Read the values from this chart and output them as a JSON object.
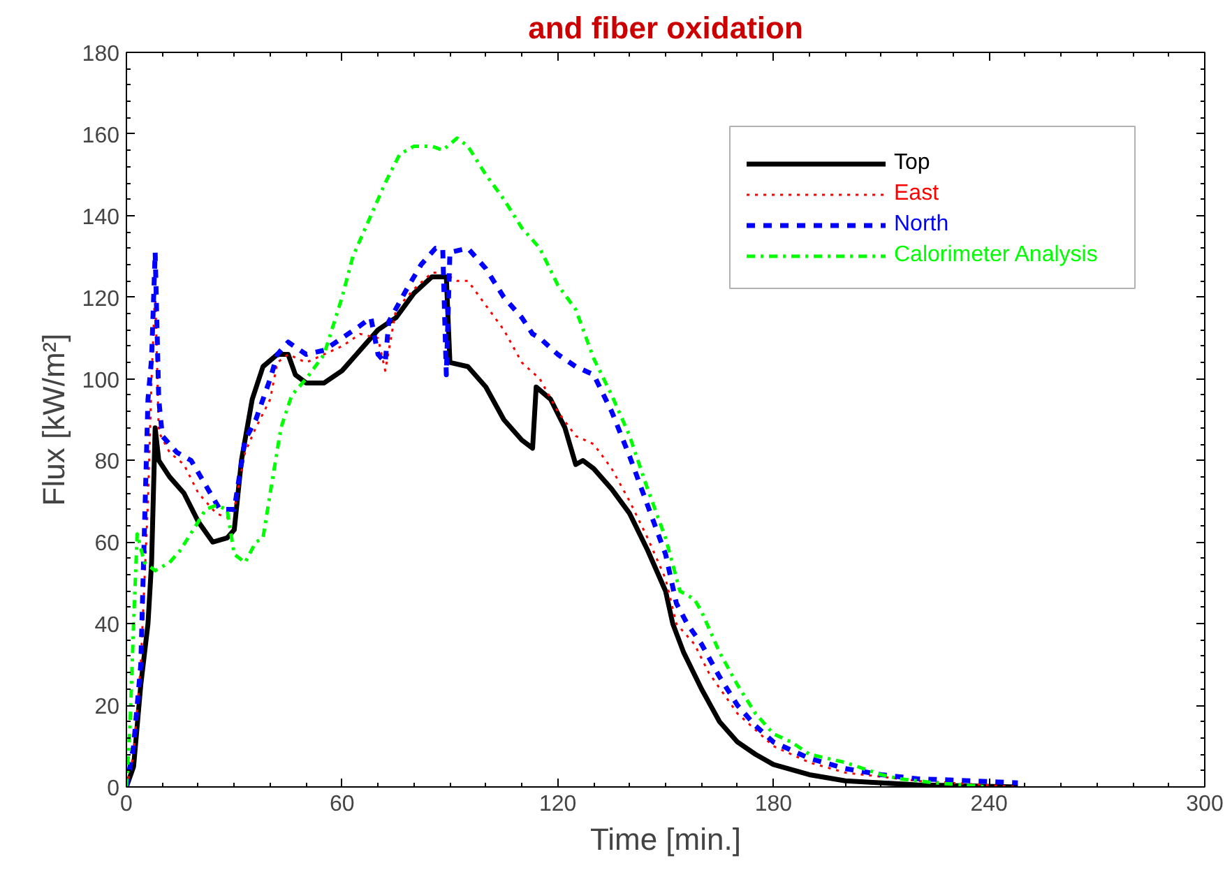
{
  "chart_data": {
    "type": "line",
    "title": "and fiber oxidation",
    "xlabel": "Time [min.]",
    "ylabel": "Flux [kW/m²]",
    "xlim": [
      0,
      300
    ],
    "ylim": [
      0,
      180
    ],
    "xticks": [
      0,
      60,
      120,
      180,
      240,
      300
    ],
    "yticks": [
      0,
      20,
      40,
      60,
      80,
      100,
      120,
      140,
      160,
      180
    ],
    "grid": false,
    "legend": "top right",
    "series": [
      {
        "name": "Top",
        "color": "#000000",
        "line_style": "solid",
        "x": [
          0,
          2,
          4,
          6,
          7,
          8,
          9,
          12,
          16,
          20,
          24,
          28,
          30,
          32,
          35,
          38,
          42,
          45,
          47,
          50,
          55,
          60,
          65,
          70,
          75,
          80,
          85,
          89,
          90,
          95,
          100,
          105,
          110,
          113,
          114,
          118,
          122,
          125,
          127,
          130,
          135,
          140,
          145,
          150,
          152,
          155,
          160,
          165,
          170,
          175,
          180,
          190,
          200,
          220,
          248
        ],
        "values": [
          0,
          5,
          25,
          40,
          55,
          88,
          80,
          76,
          72,
          65,
          60,
          61,
          63,
          80,
          95,
          103,
          106,
          106,
          101,
          99,
          99,
          102,
          107,
          112,
          115,
          121,
          125,
          125,
          104,
          103,
          98,
          90,
          85,
          83,
          98,
          95,
          88,
          79,
          80,
          78,
          73,
          67,
          58,
          48,
          40,
          33,
          24,
          16,
          11,
          8,
          5.5,
          3,
          1.5,
          0.5,
          0
        ]
      },
      {
        "name": "East",
        "color": "#ff0000",
        "line_style": "dotted",
        "x": [
          0,
          2,
          4,
          6,
          7,
          8,
          9,
          12,
          16,
          20,
          25,
          28,
          30,
          33,
          36,
          40,
          42,
          45,
          50,
          55,
          60,
          65,
          70,
          72,
          75,
          80,
          85,
          88,
          92,
          95,
          100,
          105,
          110,
          115,
          120,
          125,
          130,
          135,
          140,
          145,
          150,
          153,
          158,
          162,
          170,
          180,
          190,
          200,
          220,
          248
        ],
        "values": [
          0,
          8,
          30,
          70,
          100,
          122,
          87,
          82,
          79,
          72,
          67,
          66,
          68,
          82,
          88,
          95,
          104,
          106,
          104,
          106,
          108,
          111,
          110,
          102,
          117,
          122,
          126,
          126,
          124,
          124,
          118,
          112,
          104,
          100,
          92,
          86,
          84,
          78,
          70,
          61,
          51,
          40,
          35,
          28,
          18,
          10,
          6,
          3.5,
          1.5,
          0
        ]
      },
      {
        "name": "North",
        "color": "#0000ff",
        "line_style": "dashed",
        "x": [
          0,
          2,
          4,
          6,
          7,
          8,
          9,
          10,
          14,
          18,
          22,
          26,
          30,
          33,
          36,
          40,
          42,
          45,
          50,
          55,
          60,
          65,
          68,
          70,
          72,
          73,
          78,
          82,
          86,
          88,
          89,
          90,
          95,
          100,
          105,
          110,
          113,
          115,
          120,
          125,
          130,
          135,
          140,
          145,
          150,
          153,
          156,
          160,
          165,
          170,
          175,
          180,
          190,
          200,
          210,
          220,
          235,
          248
        ],
        "values": [
          0,
          10,
          30,
          95,
          105,
          131,
          95,
          86,
          82,
          80,
          74,
          68,
          68,
          85,
          90,
          100,
          106,
          109,
          106,
          107,
          110,
          113,
          115,
          106,
          104,
          114,
          122,
          128,
          132,
          132,
          101,
          131,
          132,
          127,
          120,
          115,
          111,
          110,
          106,
          103,
          101,
          92,
          81,
          69,
          57,
          45,
          40,
          35,
          27,
          20,
          15,
          11,
          7,
          4.5,
          3,
          2,
          1.5,
          1
        ]
      },
      {
        "name": "Calorimeter Analysis",
        "color": "#00ff00",
        "line_style": "dashdot",
        "x": [
          0,
          1,
          2,
          3,
          5,
          8,
          12,
          15,
          20,
          22,
          25,
          28,
          30,
          33,
          36,
          38,
          40,
          43,
          46,
          50,
          55,
          60,
          63,
          68,
          72,
          76,
          80,
          85,
          88,
          92,
          95,
          100,
          105,
          110,
          115,
          120,
          125,
          130,
          135,
          140,
          145,
          150,
          154,
          158,
          160,
          165,
          170,
          175,
          180,
          185,
          190,
          200,
          210,
          215,
          225,
          240
        ],
        "values": [
          0,
          15,
          40,
          62,
          55,
          53,
          55,
          58,
          65,
          68,
          69,
          68,
          57,
          55,
          60,
          61,
          72,
          88,
          96,
          100,
          106,
          120,
          130,
          140,
          148,
          155,
          157,
          157,
          156,
          159,
          157,
          150,
          144,
          137,
          132,
          123,
          117,
          105,
          96,
          86,
          73,
          61,
          48,
          46,
          43,
          33,
          25,
          18,
          13,
          11,
          8,
          6,
          3,
          2,
          1,
          0
        ]
      }
    ]
  }
}
